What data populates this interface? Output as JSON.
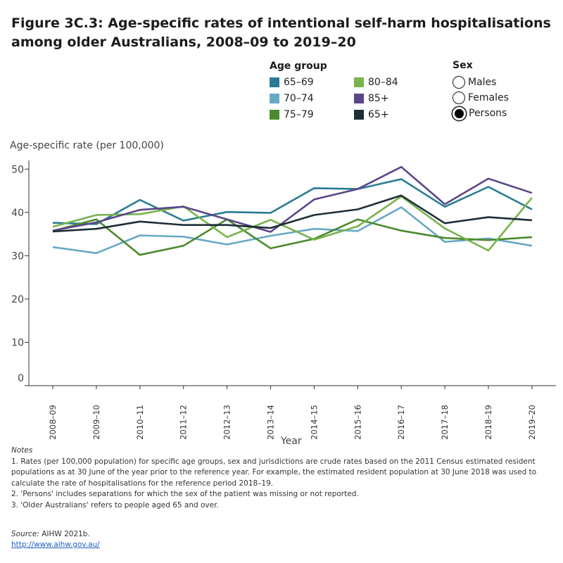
{
  "figure": {
    "title": "Figure 3C.3: Age-specific rates of intentional self-harm hospitalisations among older Australians, 2008–09 to 2019–20"
  },
  "legend": {
    "age_heading": "Age group",
    "age_items": [
      {
        "label": "65–69",
        "color": "#2a7b94"
      },
      {
        "label": "70–74",
        "color": "#66a9c4"
      },
      {
        "label": "75–79",
        "color": "#4a8a2c"
      },
      {
        "label": "80–84",
        "color": "#78b34e"
      },
      {
        "label": "85+",
        "color": "#5a4688"
      },
      {
        "label": "65+",
        "color": "#1d2e37"
      }
    ],
    "sex_heading": "Sex",
    "sex_items": [
      {
        "label": "Males",
        "selected": false
      },
      {
        "label": "Females",
        "selected": false
      },
      {
        "label": "Persons",
        "selected": true
      }
    ]
  },
  "chart_data": {
    "type": "line",
    "ylabel": "Age-specific rate (per 100,000)",
    "xlabel": "Year",
    "ylim": [
      0,
      52
    ],
    "yticks": [
      0,
      10,
      20,
      30,
      40,
      50
    ],
    "grid": false,
    "categories": [
      "2008–09",
      "2009–10",
      "2010–11",
      "2011–12",
      "2012–13",
      "2013–14",
      "2014–15",
      "2015–16",
      "2016–17",
      "2017–18",
      "2018–19",
      "2019–20"
    ],
    "series": [
      {
        "name": "65–69",
        "color": "#2a7b94",
        "values": [
          37.6,
          37.3,
          42.9,
          38.1,
          40.1,
          39.9,
          45.6,
          45.4,
          47.7,
          41.3,
          45.9,
          40.7
        ]
      },
      {
        "name": "70–74",
        "color": "#66a9c4",
        "values": [
          32.0,
          30.6,
          34.7,
          34.4,
          32.6,
          34.6,
          36.2,
          35.7,
          41.2,
          33.2,
          34.0,
          32.3
        ]
      },
      {
        "name": "75–79",
        "color": "#4a8a2c",
        "values": [
          35.7,
          38.4,
          30.2,
          32.3,
          38.4,
          31.7,
          33.9,
          38.4,
          35.8,
          34.1,
          33.6,
          34.3
        ]
      },
      {
        "name": "80–84",
        "color": "#78b34e",
        "values": [
          36.7,
          39.4,
          39.6,
          41.4,
          34.3,
          38.3,
          33.7,
          36.8,
          43.7,
          36.3,
          31.2,
          43.4
        ]
      },
      {
        "name": "85+",
        "color": "#5a4688",
        "values": [
          35.8,
          37.7,
          40.6,
          41.3,
          38.4,
          35.5,
          43.0,
          45.4,
          50.5,
          41.9,
          47.8,
          44.5
        ]
      },
      {
        "name": "65+",
        "color": "#1d2e37",
        "values": [
          35.6,
          36.2,
          37.9,
          37.1,
          37.1,
          36.4,
          39.4,
          40.7,
          43.9,
          37.5,
          38.9,
          38.2
        ]
      }
    ]
  },
  "notes": {
    "heading": "Notes",
    "lines": [
      "1. Rates (per 100,000 population) for specific age groups, sex and jurisdictions are crude rates based on the 2011 Census estimated resident populations as at 30 June of the year prior to the reference year. For example, the estimated resident population at 30 June 2018 was used to calculate the rate of hospitalisations for the reference period 2018–19.",
      "2. 'Persons' includes separations for which the sex of the patient was missing or not reported.",
      "3. 'Older Australians' refers to people aged 65 and over."
    ]
  },
  "source": {
    "label": "Source:",
    "text": "AIHW 2021b.",
    "link": "http://www.aihw.gov.au/"
  }
}
